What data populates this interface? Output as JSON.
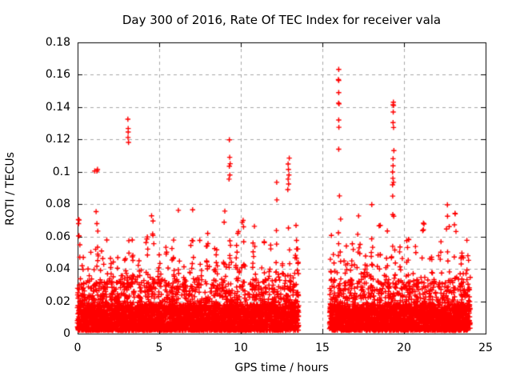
{
  "chart_data": {
    "type": "scatter",
    "title": "Day 300 of 2016, Rate Of TEC Index for receiver vala",
    "xlabel": "GPS time / hours",
    "ylabel": "ROTI / TECUs",
    "xlim": [
      0,
      25
    ],
    "ylim": [
      0,
      0.18
    ],
    "xticks": [
      0,
      5,
      10,
      15,
      20,
      25
    ],
    "xtick_labels": [
      "0",
      "5",
      "10",
      "15",
      "20",
      "25"
    ],
    "yticks": [
      0,
      0.02,
      0.04,
      0.06,
      0.08,
      0.1,
      0.12,
      0.14,
      0.16,
      0.18
    ],
    "ytick_labels": [
      "0",
      "0.02",
      "0.04",
      "0.06",
      "0.08",
      "0.1",
      "0.12",
      "0.14",
      "0.16",
      "0.18"
    ],
    "grid": true,
    "legend": "none",
    "marker": "plus",
    "marker_color": "#ff0000",
    "grid_color": "#a8a8a8",
    "frame_color": "#000000",
    "data_time_ranges_hours": [
      [
        0.0,
        13.55
      ],
      [
        15.45,
        24.05
      ]
    ],
    "baseline_band_tecus": [
      0.002,
      0.032
    ],
    "spike_envelope": [
      [
        0.08,
        0.072,
        0.06
      ],
      [
        0.35,
        0.05,
        0.08
      ],
      [
        0.75,
        0.055,
        0.08
      ],
      [
        1.15,
        0.082,
        0.09
      ],
      [
        1.5,
        0.06,
        0.07
      ],
      [
        1.75,
        0.073,
        0.06
      ],
      [
        2.1,
        0.062,
        0.08
      ],
      [
        2.45,
        0.052,
        0.07
      ],
      [
        2.8,
        0.058,
        0.08
      ],
      [
        3.05,
        0.09,
        0.07
      ],
      [
        3.35,
        0.068,
        0.06
      ],
      [
        3.8,
        0.052,
        0.09
      ],
      [
        4.25,
        0.063,
        0.08
      ],
      [
        4.6,
        0.09,
        0.07
      ],
      [
        5.0,
        0.073,
        0.07
      ],
      [
        5.45,
        0.057,
        0.08
      ],
      [
        5.85,
        0.062,
        0.07
      ],
      [
        6.15,
        0.083,
        0.06
      ],
      [
        6.6,
        0.06,
        0.08
      ],
      [
        7.0,
        0.088,
        0.07
      ],
      [
        7.45,
        0.065,
        0.08
      ],
      [
        7.95,
        0.078,
        0.07
      ],
      [
        8.45,
        0.062,
        0.08
      ],
      [
        9.0,
        0.085,
        0.07
      ],
      [
        9.35,
        0.082,
        0.06
      ],
      [
        9.8,
        0.078,
        0.07
      ],
      [
        10.15,
        0.088,
        0.07
      ],
      [
        10.8,
        0.072,
        0.08
      ],
      [
        11.4,
        0.066,
        0.08
      ],
      [
        11.85,
        0.058,
        0.06
      ],
      [
        12.2,
        0.086,
        0.06
      ],
      [
        12.65,
        0.062,
        0.07
      ],
      [
        12.95,
        0.078,
        0.06
      ],
      [
        13.4,
        0.075,
        0.09
      ],
      [
        15.6,
        0.078,
        0.09
      ],
      [
        16.05,
        0.09,
        0.07
      ],
      [
        16.45,
        0.075,
        0.07
      ],
      [
        16.85,
        0.062,
        0.08
      ],
      [
        17.25,
        0.078,
        0.07
      ],
      [
        17.65,
        0.06,
        0.08
      ],
      [
        18.05,
        0.082,
        0.07
      ],
      [
        18.5,
        0.078,
        0.07
      ],
      [
        18.95,
        0.066,
        0.07
      ],
      [
        19.35,
        0.088,
        0.07
      ],
      [
        19.8,
        0.088,
        0.07
      ],
      [
        20.25,
        0.078,
        0.07
      ],
      [
        20.7,
        0.065,
        0.08
      ],
      [
        21.2,
        0.073,
        0.07
      ],
      [
        21.7,
        0.062,
        0.08
      ],
      [
        22.2,
        0.072,
        0.07
      ],
      [
        22.7,
        0.088,
        0.07
      ],
      [
        23.15,
        0.08,
        0.06
      ],
      [
        23.55,
        0.066,
        0.07
      ],
      [
        23.9,
        0.066,
        0.07
      ]
    ],
    "outlier_points": [
      [
        0.05,
        0.0705
      ],
      [
        0.06,
        0.068
      ],
      [
        1.05,
        0.1005
      ],
      [
        1.18,
        0.1005
      ],
      [
        1.22,
        0.1015
      ],
      [
        3.08,
        0.1325
      ],
      [
        3.1,
        0.1268
      ],
      [
        3.1,
        0.1246
      ],
      [
        3.09,
        0.1212
      ],
      [
        3.12,
        0.1182
      ],
      [
        9.3,
        0.1198
      ],
      [
        9.32,
        0.109
      ],
      [
        9.35,
        0.105
      ],
      [
        9.3,
        0.1035
      ],
      [
        9.33,
        0.098
      ],
      [
        9.28,
        0.0955
      ],
      [
        12.2,
        0.0935
      ],
      [
        12.97,
        0.1085
      ],
      [
        12.9,
        0.1048
      ],
      [
        12.92,
        0.1015
      ],
      [
        12.95,
        0.098
      ],
      [
        12.9,
        0.0955
      ],
      [
        12.93,
        0.0925
      ],
      [
        12.88,
        0.089
      ],
      [
        16.0,
        0.1633
      ],
      [
        15.98,
        0.157
      ],
      [
        16.0,
        0.1565
      ],
      [
        16.0,
        0.149
      ],
      [
        15.99,
        0.1425
      ],
      [
        16.02,
        0.142
      ],
      [
        16.0,
        0.132
      ],
      [
        16.01,
        0.1275
      ],
      [
        16.0,
        0.114
      ],
      [
        19.35,
        0.143
      ],
      [
        19.33,
        0.1415
      ],
      [
        19.36,
        0.141
      ],
      [
        19.34,
        0.137
      ],
      [
        19.33,
        0.1304
      ],
      [
        19.36,
        0.1274
      ],
      [
        19.38,
        0.1131
      ],
      [
        19.33,
        0.1081
      ],
      [
        19.33,
        0.1037
      ],
      [
        19.3,
        0.0999
      ],
      [
        19.32,
        0.096
      ],
      [
        19.36,
        0.0935
      ],
      [
        19.3,
        0.092
      ]
    ],
    "render": {
      "seed": 20161026,
      "column_step_hours": 0.02
    }
  }
}
